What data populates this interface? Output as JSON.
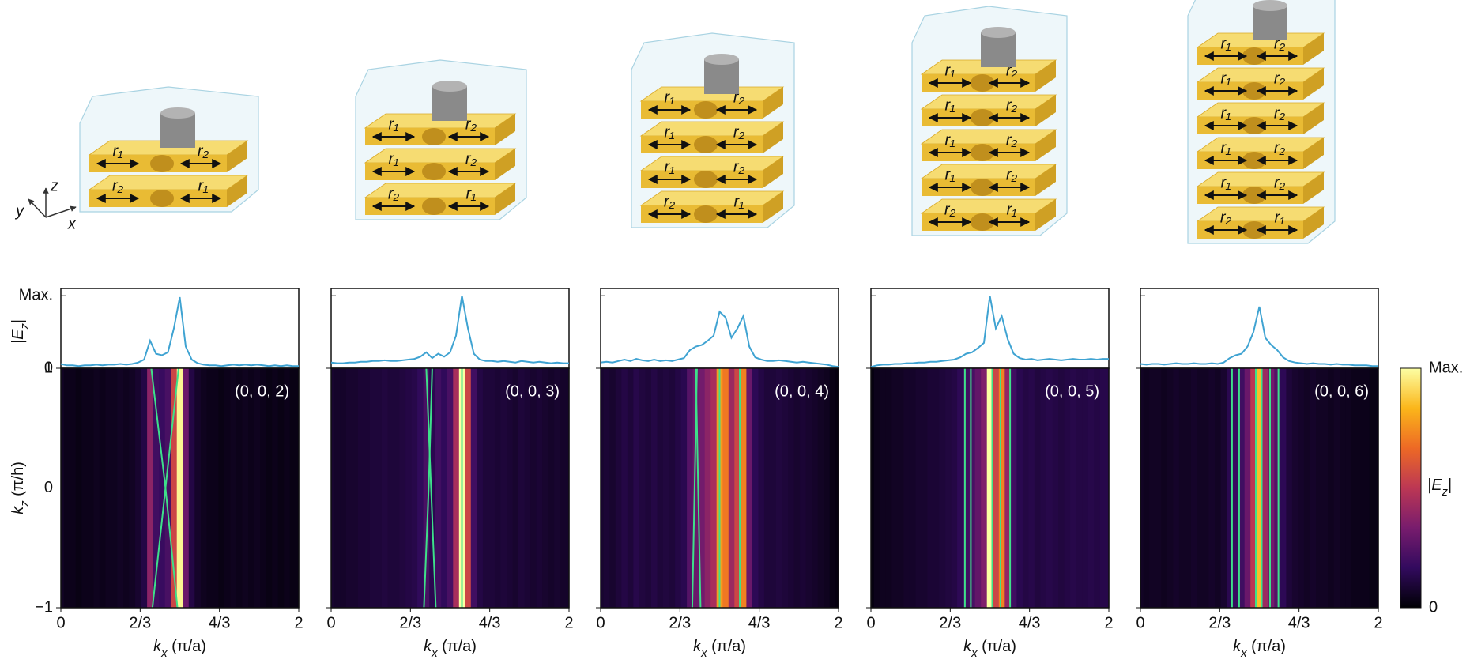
{
  "chart_data": [
    {
      "type": "heatmap",
      "label": "(0, 0, 2)",
      "x": [
        0,
        0.05,
        0.1,
        0.15,
        0.2,
        0.25,
        0.3,
        0.35,
        0.4,
        0.45,
        0.5,
        0.55,
        0.6,
        0.65,
        0.7,
        0.75,
        0.8,
        0.85,
        0.9,
        0.95,
        1.0,
        1.05,
        1.1,
        1.15,
        1.2,
        1.25,
        1.3,
        1.35,
        1.4,
        1.45,
        1.5,
        1.55,
        1.6,
        1.65,
        1.7,
        1.75,
        1.8,
        1.85,
        1.9,
        1.95,
        2.0
      ],
      "values": [
        0.06,
        0.04,
        0.04,
        0.03,
        0.04,
        0.04,
        0.05,
        0.04,
        0.05,
        0.05,
        0.06,
        0.05,
        0.06,
        0.08,
        0.12,
        0.38,
        0.2,
        0.18,
        0.22,
        0.55,
        0.98,
        0.3,
        0.12,
        0.07,
        0.05,
        0.04,
        0.04,
        0.03,
        0.04,
        0.05,
        0.04,
        0.05,
        0.04,
        0.05,
        0.04,
        0.03,
        0.04,
        0.03,
        0.04,
        0.03,
        0.03
      ],
      "color": "#3fa3d2",
      "band_color": "#3ee08a",
      "band_kz": [
        -1,
        0,
        1
      ],
      "bands": [
        {
          "kx": [
            0.77,
            0.88,
            0.99
          ]
        },
        {
          "kx": [
            0.98,
            0.88,
            0.76
          ]
        }
      ],
      "xlim": [
        0,
        2
      ],
      "xticks": [
        0,
        {
          "value": 0.6667,
          "label": "2/3"
        },
        {
          "value": 1.3333,
          "label": "4/3"
        },
        2
      ],
      "ylim": [
        -1,
        1
      ],
      "yticks": [
        {
          "value": -1,
          "label": "−1"
        },
        0,
        1
      ],
      "show_ytick_labels": true,
      "profile_ylim": [
        0,
        1.1
      ],
      "profile_yticks": [
        {
          "value": 0,
          "label": "0"
        },
        {
          "value": 1,
          "label": "Max."
        }
      ],
      "xlabel": {
        "pre": "k",
        "sub": "x",
        "post": " (π/a)"
      },
      "ylabel": {
        "pre": "k",
        "sub": "z",
        "post": " (π/h)"
      },
      "profile_ylabel": {
        "pre": "|E",
        "sub": "z",
        "post": "|"
      }
    },
    {
      "type": "heatmap",
      "label": "(0, 0, 3)",
      "x": [
        0,
        0.05,
        0.1,
        0.15,
        0.2,
        0.25,
        0.3,
        0.35,
        0.4,
        0.45,
        0.5,
        0.55,
        0.6,
        0.65,
        0.7,
        0.75,
        0.8,
        0.85,
        0.9,
        0.95,
        1.0,
        1.05,
        1.1,
        1.15,
        1.2,
        1.25,
        1.3,
        1.35,
        1.4,
        1.45,
        1.5,
        1.55,
        1.6,
        1.65,
        1.7,
        1.75,
        1.8,
        1.85,
        1.9,
        1.95,
        2.0
      ],
      "values": [
        0.08,
        0.07,
        0.07,
        0.08,
        0.08,
        0.09,
        0.09,
        0.1,
        0.1,
        0.11,
        0.1,
        0.1,
        0.11,
        0.12,
        0.13,
        0.16,
        0.22,
        0.14,
        0.2,
        0.16,
        0.22,
        0.45,
        1.0,
        0.55,
        0.2,
        0.12,
        0.1,
        0.1,
        0.09,
        0.1,
        0.09,
        0.08,
        0.1,
        0.09,
        0.08,
        0.09,
        0.08,
        0.07,
        0.08,
        0.07,
        0.07
      ],
      "color": "#3fa3d2",
      "band_color": "#3ee08a",
      "band_kz": [
        -1,
        0,
        1
      ],
      "bands": [
        {
          "kx": [
            0.78,
            0.82,
            0.85
          ]
        },
        {
          "kx": [
            0.88,
            0.84,
            0.8
          ]
        },
        {
          "kx": [
            1.1,
            1.1,
            1.1
          ]
        }
      ],
      "xlim": [
        0,
        2
      ],
      "xticks": [
        0,
        {
          "value": 0.6667,
          "label": "2/3"
        },
        {
          "value": 1.3333,
          "label": "4/3"
        },
        2
      ],
      "ylim": [
        -1,
        1
      ],
      "yticks": [
        -1,
        0,
        1
      ],
      "show_ytick_labels": false,
      "profile_ylim": [
        0,
        1.1
      ],
      "profile_yticks": [
        0,
        1
      ],
      "xlabel": {
        "pre": "k",
        "sub": "x",
        "post": " (π/a)"
      }
    },
    {
      "type": "heatmap",
      "label": "(0, 0, 4)",
      "x": [
        0,
        0.05,
        0.1,
        0.15,
        0.2,
        0.25,
        0.3,
        0.35,
        0.4,
        0.45,
        0.5,
        0.55,
        0.6,
        0.65,
        0.7,
        0.75,
        0.8,
        0.85,
        0.9,
        0.95,
        1.0,
        1.05,
        1.1,
        1.15,
        1.2,
        1.25,
        1.3,
        1.35,
        1.4,
        1.45,
        1.5,
        1.55,
        1.6,
        1.65,
        1.7,
        1.75,
        1.8,
        1.85,
        1.9,
        1.95,
        2.0
      ],
      "values": [
        0.08,
        0.09,
        0.08,
        0.1,
        0.12,
        0.1,
        0.13,
        0.11,
        0.1,
        0.12,
        0.1,
        0.11,
        0.1,
        0.12,
        0.14,
        0.25,
        0.3,
        0.32,
        0.38,
        0.45,
        0.78,
        0.7,
        0.42,
        0.55,
        0.72,
        0.3,
        0.15,
        0.12,
        0.1,
        0.1,
        0.11,
        0.1,
        0.09,
        0.08,
        0.09,
        0.08,
        0.07,
        0.06,
        0.05,
        0.03,
        0.02
      ],
      "color": "#3fa3d2",
      "band_color": "#3ee08a",
      "band_kz": [
        -1,
        0,
        1
      ],
      "bands": [
        {
          "kx": [
            0.77,
            0.79,
            0.81
          ]
        },
        {
          "kx": [
            0.84,
            0.82,
            0.8
          ]
        },
        {
          "kx": [
            1.0,
            1.0,
            1.0
          ]
        },
        {
          "kx": [
            1.17,
            1.17,
            1.17
          ]
        }
      ],
      "xlim": [
        0,
        2
      ],
      "xticks": [
        0,
        {
          "value": 0.6667,
          "label": "2/3"
        },
        {
          "value": 1.3333,
          "label": "4/3"
        },
        2
      ],
      "ylim": [
        -1,
        1
      ],
      "yticks": [
        -1,
        0,
        1
      ],
      "show_ytick_labels": false,
      "profile_ylim": [
        0,
        1.1
      ],
      "profile_yticks": [
        0,
        1
      ],
      "xlabel": {
        "pre": "k",
        "sub": "x",
        "post": " (π/a)"
      }
    },
    {
      "type": "heatmap",
      "label": "(0, 0, 5)",
      "x": [
        0,
        0.05,
        0.1,
        0.15,
        0.2,
        0.25,
        0.3,
        0.35,
        0.4,
        0.45,
        0.5,
        0.55,
        0.6,
        0.65,
        0.7,
        0.75,
        0.8,
        0.85,
        0.9,
        0.95,
        1.0,
        1.05,
        1.1,
        1.15,
        1.2,
        1.25,
        1.3,
        1.35,
        1.4,
        1.45,
        1.5,
        1.55,
        1.6,
        1.65,
        1.7,
        1.75,
        1.8,
        1.85,
        1.9,
        1.95,
        2.0
      ],
      "values": [
        0.02,
        0.04,
        0.05,
        0.05,
        0.06,
        0.06,
        0.07,
        0.07,
        0.08,
        0.08,
        0.09,
        0.09,
        0.1,
        0.11,
        0.12,
        0.15,
        0.2,
        0.22,
        0.28,
        0.35,
        1.0,
        0.55,
        0.72,
        0.4,
        0.2,
        0.14,
        0.12,
        0.13,
        0.11,
        0.12,
        0.13,
        0.12,
        0.11,
        0.12,
        0.13,
        0.12,
        0.12,
        0.13,
        0.12,
        0.13,
        0.13
      ],
      "color": "#3fa3d2",
      "band_color": "#3ee08a",
      "band_kz": [
        -1,
        0,
        1
      ],
      "bands": [
        {
          "kx": [
            0.79,
            0.79,
            0.79
          ]
        },
        {
          "kx": [
            0.84,
            0.84,
            0.84
          ]
        },
        {
          "kx": [
            1.02,
            1.02,
            1.02
          ]
        },
        {
          "kx": [
            1.09,
            1.09,
            1.09
          ]
        },
        {
          "kx": [
            1.17,
            1.17,
            1.17
          ]
        }
      ],
      "xlim": [
        0,
        2
      ],
      "xticks": [
        0,
        {
          "value": 0.6667,
          "label": "2/3"
        },
        {
          "value": 1.3333,
          "label": "4/3"
        },
        2
      ],
      "ylim": [
        -1,
        1
      ],
      "yticks": [
        -1,
        0,
        1
      ],
      "show_ytick_labels": false,
      "profile_ylim": [
        0,
        1.1
      ],
      "profile_yticks": [
        0,
        1
      ],
      "xlabel": {
        "pre": "k",
        "sub": "x",
        "post": " (π/a)"
      }
    },
    {
      "type": "heatmap",
      "label": "(0, 0, 6)",
      "x": [
        0,
        0.05,
        0.1,
        0.15,
        0.2,
        0.25,
        0.3,
        0.35,
        0.4,
        0.45,
        0.5,
        0.55,
        0.6,
        0.65,
        0.7,
        0.75,
        0.8,
        0.85,
        0.9,
        0.95,
        1.0,
        1.05,
        1.1,
        1.15,
        1.2,
        1.25,
        1.3,
        1.35,
        1.4,
        1.45,
        1.5,
        1.55,
        1.6,
        1.65,
        1.7,
        1.75,
        1.8,
        1.85,
        1.9,
        1.95,
        2.0
      ],
      "values": [
        0.06,
        0.05,
        0.06,
        0.06,
        0.05,
        0.06,
        0.07,
        0.06,
        0.06,
        0.07,
        0.06,
        0.06,
        0.07,
        0.06,
        0.08,
        0.14,
        0.18,
        0.2,
        0.3,
        0.5,
        0.85,
        0.42,
        0.32,
        0.25,
        0.15,
        0.1,
        0.08,
        0.07,
        0.06,
        0.07,
        0.06,
        0.06,
        0.05,
        0.06,
        0.05,
        0.05,
        0.04,
        0.04,
        0.04,
        0.03,
        0.03
      ],
      "color": "#3fa3d2",
      "band_color": "#3ee08a",
      "band_kz": [
        -1,
        0,
        1
      ],
      "bands": [
        {
          "kx": [
            0.77,
            0.77,
            0.77
          ]
        },
        {
          "kx": [
            0.83,
            0.83,
            0.83
          ]
        },
        {
          "kx": [
            0.97,
            0.97,
            0.97
          ]
        },
        {
          "kx": [
            1.02,
            1.02,
            1.02
          ]
        },
        {
          "kx": [
            1.09,
            1.09,
            1.09
          ]
        },
        {
          "kx": [
            1.16,
            1.16,
            1.16
          ]
        }
      ],
      "xlim": [
        0,
        2
      ],
      "xticks": [
        0,
        {
          "value": 0.6667,
          "label": "2/3"
        },
        {
          "value": 1.3333,
          "label": "4/3"
        },
        2
      ],
      "ylim": [
        -1,
        1
      ],
      "yticks": [
        -1,
        0,
        1
      ],
      "show_ytick_labels": false,
      "profile_ylim": [
        0,
        1.1
      ],
      "profile_yticks": [
        0,
        1
      ],
      "xlabel": {
        "pre": "k",
        "sub": "x",
        "post": " (π/a)"
      }
    }
  ],
  "colorbar": {
    "colors": [
      "#000004",
      "#320a5e",
      "#781c6d",
      "#bc3754",
      "#ed6925",
      "#fbb61a",
      "#fcffa4"
    ],
    "ticks": [
      {
        "value": 0,
        "label": "0"
      },
      {
        "value": 1,
        "label": "Max."
      }
    ],
    "label": {
      "pre": "|E",
      "sub": "z",
      "post": "|"
    }
  },
  "illustrations": [
    {
      "layers": [
        [
          "r₁",
          "r₂"
        ],
        [
          "r₂",
          "r₁"
        ]
      ]
    },
    {
      "layers": [
        [
          "r₁",
          "r₂"
        ],
        [
          "r₁",
          "r₂"
        ],
        [
          "r₂",
          "r₁"
        ]
      ]
    },
    {
      "layers": [
        [
          "r₁",
          "r₂"
        ],
        [
          "r₁",
          "r₂"
        ],
        [
          "r₁",
          "r₂"
        ],
        [
          "r₂",
          "r₁"
        ]
      ]
    },
    {
      "layers": [
        [
          "r₁",
          "r₂"
        ],
        [
          "r₁",
          "r₂"
        ],
        [
          "r₁",
          "r₂"
        ],
        [
          "r₁",
          "r₂"
        ],
        [
          "r₂",
          "r₁"
        ]
      ]
    },
    {
      "layers": [
        [
          "r₁",
          "r₂"
        ],
        [
          "r₁",
          "r₂"
        ],
        [
          "r₁",
          "r₂"
        ],
        [
          "r₁",
          "r₂"
        ],
        [
          "r₁",
          "r₂"
        ],
        [
          "r₂",
          "r₁"
        ]
      ]
    }
  ],
  "axes_triad": [
    "z",
    "y",
    "x"
  ]
}
